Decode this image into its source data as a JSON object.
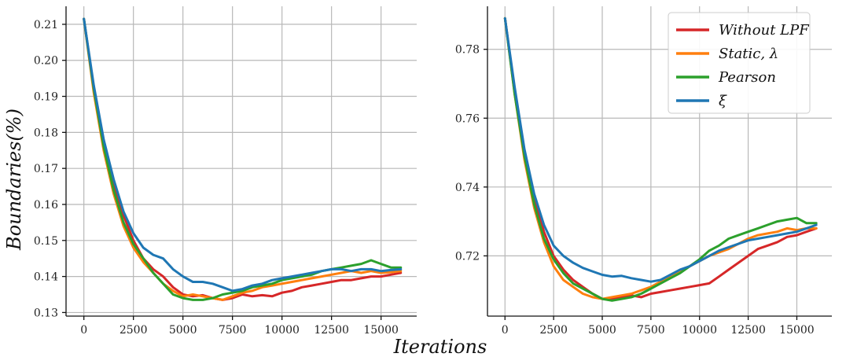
{
  "chart_data": [
    {
      "type": "line",
      "title": "",
      "xlabel": "Iterations",
      "ylabel": "Boundaries(%)",
      "xlim": [
        -900,
        16800
      ],
      "ylim": [
        0.129,
        0.215
      ],
      "xticks": [
        0,
        2500,
        5000,
        7500,
        10000,
        12500,
        15000
      ],
      "yticks": [
        0.13,
        0.14,
        0.15,
        0.16,
        0.17,
        0.18,
        0.19,
        0.2,
        0.21
      ],
      "ytick_labels": [
        "0.13",
        "0.14",
        "0.15",
        "0.16",
        "0.17",
        "0.18",
        "0.19",
        "0.20",
        "0.21"
      ],
      "grid": true,
      "series": [
        {
          "name": "Without LPF",
          "color": "#d62728",
          "x": [
            0,
            500,
            1000,
            1500,
            2000,
            2500,
            3000,
            3500,
            4000,
            4500,
            5000,
            5500,
            6000,
            6500,
            7000,
            7500,
            8000,
            8500,
            9000,
            9500,
            10000,
            10500,
            11000,
            11500,
            12000,
            12500,
            13000,
            13500,
            14000,
            14500,
            15000,
            15500,
            16000
          ],
          "values": [
            0.2115,
            0.192,
            0.177,
            0.166,
            0.157,
            0.15,
            0.145,
            0.142,
            0.14,
            0.137,
            0.135,
            0.1345,
            0.1348,
            0.134,
            0.1335,
            0.134,
            0.135,
            0.1345,
            0.1348,
            0.1345,
            0.1355,
            0.136,
            0.137,
            0.1375,
            0.138,
            0.1385,
            0.139,
            0.139,
            0.1395,
            0.14,
            0.14,
            0.1405,
            0.141
          ]
        },
        {
          "name": "Static, λ",
          "color": "#ff7f0e",
          "x": [
            0,
            500,
            1000,
            1500,
            2000,
            2500,
            3000,
            3500,
            4000,
            4500,
            5000,
            5500,
            6000,
            6500,
            7000,
            7500,
            8000,
            8500,
            9000,
            9500,
            10000,
            10500,
            11000,
            11500,
            12000,
            12500,
            13000,
            13500,
            14000,
            14500,
            15000,
            15500,
            16000
          ],
          "values": [
            0.2115,
            0.191,
            0.175,
            0.163,
            0.154,
            0.148,
            0.144,
            0.141,
            0.138,
            0.136,
            0.1345,
            0.135,
            0.1345,
            0.134,
            0.1335,
            0.1345,
            0.1355,
            0.136,
            0.137,
            0.1375,
            0.138,
            0.1385,
            0.139,
            0.1395,
            0.14,
            0.1405,
            0.141,
            0.1415,
            0.141,
            0.1415,
            0.141,
            0.1412,
            0.1415
          ]
        },
        {
          "name": "Pearson",
          "color": "#2ca02c",
          "x": [
            0,
            500,
            1000,
            1500,
            2000,
            2500,
            3000,
            3500,
            4000,
            4500,
            5000,
            5500,
            6000,
            6500,
            7000,
            7500,
            8000,
            8500,
            9000,
            9500,
            10000,
            10500,
            11000,
            11500,
            12000,
            12500,
            13000,
            13500,
            14000,
            14500,
            15000,
            15500,
            16000
          ],
          "values": [
            0.2115,
            0.192,
            0.176,
            0.164,
            0.155,
            0.149,
            0.145,
            0.141,
            0.138,
            0.135,
            0.134,
            0.1335,
            0.1335,
            0.134,
            0.135,
            0.1355,
            0.136,
            0.137,
            0.1375,
            0.138,
            0.139,
            0.1395,
            0.14,
            0.1405,
            0.1415,
            0.142,
            0.1425,
            0.143,
            0.1435,
            0.1445,
            0.1435,
            0.1425,
            0.1425
          ]
        },
        {
          "name": "ξ",
          "color": "#1f77b4",
          "x": [
            0,
            500,
            1000,
            1500,
            2000,
            2500,
            3000,
            3500,
            4000,
            4500,
            5000,
            5500,
            6000,
            6500,
            7000,
            7500,
            8000,
            8500,
            9000,
            9500,
            10000,
            10500,
            11000,
            11500,
            12000,
            12500,
            13000,
            13500,
            14000,
            14500,
            15000,
            15500,
            16000
          ],
          "values": [
            0.2115,
            0.193,
            0.178,
            0.167,
            0.158,
            0.152,
            0.148,
            0.146,
            0.145,
            0.142,
            0.14,
            0.1385,
            0.1385,
            0.138,
            0.137,
            0.136,
            0.1365,
            0.1375,
            0.138,
            0.139,
            0.1395,
            0.14,
            0.1405,
            0.141,
            0.1415,
            0.142,
            0.142,
            0.1415,
            0.142,
            0.142,
            0.1415,
            0.1418,
            0.142
          ]
        }
      ]
    },
    {
      "type": "line",
      "title": "",
      "xlabel": "Iterations",
      "ylabel": "",
      "xlim": [
        -900,
        16800
      ],
      "ylim": [
        0.7025,
        0.7925
      ],
      "xticks": [
        0,
        2500,
        5000,
        7500,
        10000,
        12500,
        15000
      ],
      "yticks": [
        0.72,
        0.74,
        0.76,
        0.78
      ],
      "ytick_labels": [
        "0.72",
        "0.74",
        "0.76",
        "0.78"
      ],
      "grid": true,
      "legend": "top-right",
      "series": [
        {
          "name": "Without LPF",
          "color": "#d62728",
          "x": [
            0,
            500,
            1000,
            1500,
            2000,
            2500,
            3000,
            3500,
            4000,
            4500,
            5000,
            5500,
            6000,
            6500,
            7000,
            7500,
            8000,
            8500,
            9000,
            9500,
            10000,
            10500,
            11000,
            11500,
            12000,
            12500,
            13000,
            13500,
            14000,
            14500,
            15000,
            15500,
            16000
          ],
          "values": [
            0.789,
            0.768,
            0.75,
            0.737,
            0.727,
            0.72,
            0.716,
            0.713,
            0.711,
            0.709,
            0.7075,
            0.7075,
            0.708,
            0.7085,
            0.708,
            0.709,
            0.7095,
            0.71,
            0.7105,
            0.711,
            0.7115,
            0.712,
            0.714,
            0.716,
            0.718,
            0.72,
            0.722,
            0.723,
            0.724,
            0.7255,
            0.726,
            0.727,
            0.728
          ]
        },
        {
          "name": "Static, λ",
          "color": "#ff7f0e",
          "x": [
            0,
            500,
            1000,
            1500,
            2000,
            2500,
            3000,
            3500,
            4000,
            4500,
            5000,
            5500,
            6000,
            6500,
            7000,
            7500,
            8000,
            8500,
            9000,
            9500,
            10000,
            10500,
            11000,
            11500,
            12000,
            12500,
            13000,
            13500,
            14000,
            14500,
            15000,
            15500,
            16000
          ],
          "values": [
            0.789,
            0.767,
            0.748,
            0.734,
            0.724,
            0.717,
            0.713,
            0.711,
            0.709,
            0.708,
            0.7075,
            0.708,
            0.7085,
            0.709,
            0.71,
            0.711,
            0.7125,
            0.714,
            0.7155,
            0.717,
            0.7185,
            0.72,
            0.721,
            0.722,
            0.7235,
            0.725,
            0.726,
            0.7265,
            0.727,
            0.728,
            0.7275,
            0.728,
            0.728
          ]
        },
        {
          "name": "Pearson",
          "color": "#2ca02c",
          "x": [
            0,
            500,
            1000,
            1500,
            2000,
            2500,
            3000,
            3500,
            4000,
            4500,
            5000,
            5500,
            6000,
            6500,
            7000,
            7500,
            8000,
            8500,
            9000,
            9500,
            10000,
            10500,
            11000,
            11500,
            12000,
            12500,
            13000,
            13500,
            14000,
            14500,
            15000,
            15500,
            16000
          ],
          "values": [
            0.789,
            0.767,
            0.749,
            0.735,
            0.725,
            0.719,
            0.715,
            0.712,
            0.7105,
            0.709,
            0.7075,
            0.707,
            0.7075,
            0.708,
            0.709,
            0.7105,
            0.712,
            0.7135,
            0.715,
            0.717,
            0.719,
            0.7215,
            0.723,
            0.725,
            0.726,
            0.727,
            0.728,
            0.729,
            0.73,
            0.7305,
            0.731,
            0.7295,
            0.7295
          ]
        },
        {
          "name": "ξ",
          "color": "#1f77b4",
          "x": [
            0,
            500,
            1000,
            1500,
            2000,
            2500,
            3000,
            3500,
            4000,
            4500,
            5000,
            5500,
            6000,
            6500,
            7000,
            7500,
            8000,
            8500,
            9000,
            9500,
            10000,
            10500,
            11000,
            11500,
            12000,
            12500,
            13000,
            13500,
            14000,
            14500,
            15000,
            15500,
            16000
          ],
          "values": [
            0.789,
            0.769,
            0.751,
            0.738,
            0.729,
            0.723,
            0.72,
            0.718,
            0.7165,
            0.7155,
            0.7145,
            0.714,
            0.7142,
            0.7135,
            0.713,
            0.7125,
            0.713,
            0.7145,
            0.716,
            0.717,
            0.7185,
            0.72,
            0.7215,
            0.7225,
            0.7235,
            0.7245,
            0.725,
            0.7255,
            0.726,
            0.7265,
            0.727,
            0.728,
            0.729
          ]
        }
      ]
    }
  ]
}
